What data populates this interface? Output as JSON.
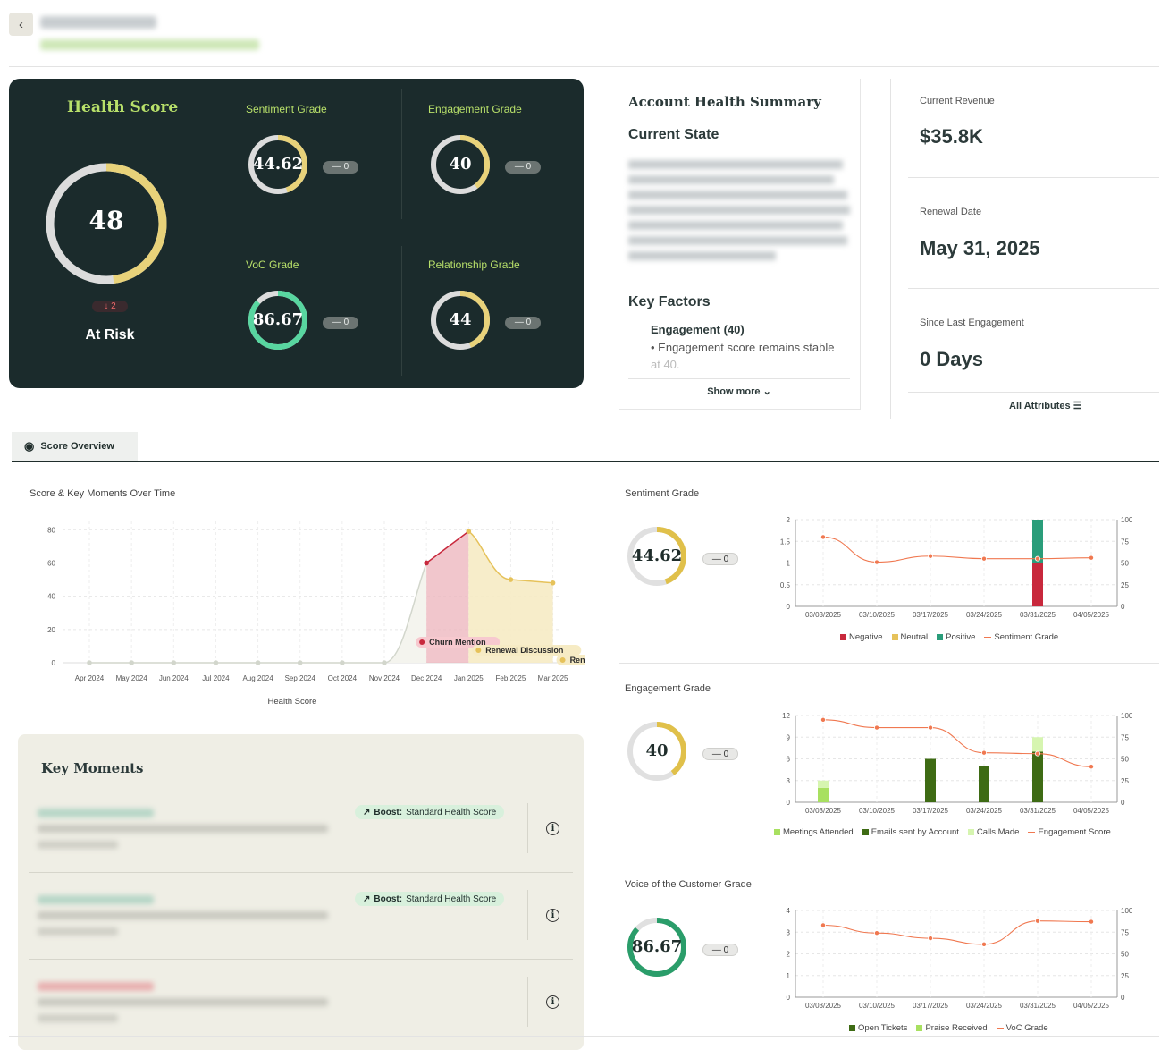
{
  "header": {
    "back_label": "‹"
  },
  "health_score": {
    "title": "Health Score",
    "value": "48",
    "value_fraction": 0.48,
    "change": "↓ 2",
    "status": "At Risk",
    "grades": [
      {
        "label": "Sentiment Grade",
        "value": "44.62",
        "fraction": 0.4462,
        "delta": "— 0",
        "color": "#e8d27a"
      },
      {
        "label": "Engagement Grade",
        "value": "40",
        "fraction": 0.4,
        "delta": "— 0",
        "color": "#e8d27a"
      },
      {
        "label": "VoC Grade",
        "value": "86.67",
        "fraction": 0.8667,
        "delta": "— 0",
        "color": "#58d6a0"
      },
      {
        "label": "Relationship Grade",
        "value": "44",
        "fraction": 0.44,
        "delta": "— 0",
        "color": "#e8d27a"
      }
    ]
  },
  "summary": {
    "title": "Account Health Summary",
    "current_state": "Current State",
    "key_factors": "Key Factors",
    "factor_title": "Engagement (40)",
    "factor_bullet": "• Engagement score remains stable",
    "factor_bullet_cont": "at 40.",
    "show_more": "Show more"
  },
  "kpis": {
    "revenue_label": "Current Revenue",
    "revenue_value": "$35.8K",
    "renewal_label": "Renewal Date",
    "renewal_value": "May 31, 2025",
    "engagement_label": "Since Last Engagement",
    "engagement_value": "0 Days",
    "all_attributes": "All Attributes"
  },
  "tabs": {
    "score_overview": "Score Overview"
  },
  "score_chart": {
    "title": "Score & Key Moments Over Time",
    "xlabel": "Health Score",
    "annotations": [
      "Churn Mention",
      "Renewal Discussion",
      "Renewa"
    ]
  },
  "key_moments": {
    "title": "Key Moments",
    "boost_prefix": "Boost:",
    "boost_text": "Standard Health Score"
  },
  "side_charts": {
    "sentiment_title": "Sentiment Grade",
    "sentiment_value": "44.62",
    "sentiment_delta": "— 0",
    "sentiment_legend": [
      "Negative",
      "Neutral",
      "Positive",
      "Sentiment Grade"
    ],
    "engagement_title": "Engagement Grade",
    "engagement_value": "40",
    "engagement_delta": "— 0",
    "engagement_legend": [
      "Meetings Attended",
      "Emails sent by Account",
      "Calls Made",
      "Engagement Score"
    ],
    "voc_title": "Voice of the Customer Grade",
    "voc_value": "86.67",
    "voc_delta": "— 0",
    "voc_legend": [
      "Open Tickets",
      "Praise Received",
      "VoC Grade"
    ]
  },
  "chart_data": [
    {
      "type": "area",
      "title": "Score & Key Moments Over Time",
      "xlabel": "Health Score",
      "categories": [
        "Apr 2024",
        "May 2024",
        "Jun 2024",
        "Jul 2024",
        "Aug 2024",
        "Sep 2024",
        "Oct 2024",
        "Nov 2024",
        "Dec 2024",
        "Jan 2025",
        "Feb 2025",
        "Mar 2025"
      ],
      "yticks": [
        0,
        20,
        40,
        60,
        80
      ],
      "ylim": [
        0,
        85
      ],
      "values": [
        0,
        0,
        0,
        0,
        0,
        0,
        0,
        0,
        60,
        79,
        50,
        48
      ]
    },
    {
      "type": "bar",
      "title": "Sentiment Grade",
      "categories": [
        "03/03/2025",
        "03/10/2025",
        "03/17/2025",
        "03/24/2025",
        "03/31/2025",
        "04/05/2025"
      ],
      "yticks_left": [
        0,
        0.5,
        1,
        1.5,
        2
      ],
      "yticks_right": [
        0,
        25,
        50,
        75,
        100
      ],
      "series": [
        {
          "name": "Negative",
          "values": [
            0,
            0,
            0,
            0,
            1,
            0
          ],
          "color": "#c8283c"
        },
        {
          "name": "Neutral",
          "values": [
            0,
            0,
            0,
            0,
            0,
            0
          ],
          "color": "#e6c25a"
        },
        {
          "name": "Positive",
          "values": [
            0,
            0,
            0,
            0,
            1,
            0
          ],
          "color": "#2a9d7a"
        },
        {
          "name": "Sentiment Grade",
          "values": [
            80,
            51,
            58,
            55,
            55,
            56
          ],
          "color": "#f07850",
          "axis": "right"
        }
      ]
    },
    {
      "type": "bar",
      "title": "Engagement Grade",
      "categories": [
        "03/03/2025",
        "03/10/2025",
        "03/17/2025",
        "03/24/2025",
        "03/31/2025",
        "04/05/2025"
      ],
      "yticks_left": [
        0,
        3,
        6,
        9,
        12
      ],
      "yticks_right": [
        0,
        25,
        50,
        75,
        100
      ],
      "series": [
        {
          "name": "Meetings Attended",
          "values": [
            2,
            0,
            0,
            0,
            0,
            0
          ],
          "color": "#a8e060"
        },
        {
          "name": "Emails sent by Account",
          "values": [
            0,
            0,
            6,
            5,
            7,
            0
          ],
          "color": "#3e6b14"
        },
        {
          "name": "Calls Made",
          "values": [
            1,
            0,
            0,
            0,
            2,
            0
          ],
          "color": "#d6f5b0"
        },
        {
          "name": "Engagement Score",
          "values": [
            95,
            86,
            86,
            57,
            56,
            41
          ],
          "color": "#f07850",
          "axis": "right"
        }
      ]
    },
    {
      "type": "line",
      "title": "Voice of the Customer Grade",
      "categories": [
        "03/03/2025",
        "03/10/2025",
        "03/17/2025",
        "03/24/2025",
        "03/31/2025",
        "04/05/2025"
      ],
      "yticks_left": [
        0,
        1,
        2,
        3,
        4
      ],
      "yticks_right": [
        0,
        25,
        50,
        75,
        100
      ],
      "series": [
        {
          "name": "Open Tickets",
          "values": [
            0,
            0,
            0,
            0,
            0,
            0
          ],
          "color": "#3e6b14"
        },
        {
          "name": "Praise Received",
          "values": [
            0,
            0,
            0,
            0,
            0,
            0
          ],
          "color": "#a8e060"
        },
        {
          "name": "VoC Grade",
          "values": [
            83,
            74,
            68,
            61,
            88,
            87
          ],
          "color": "#f07850",
          "axis": "right"
        }
      ]
    }
  ]
}
